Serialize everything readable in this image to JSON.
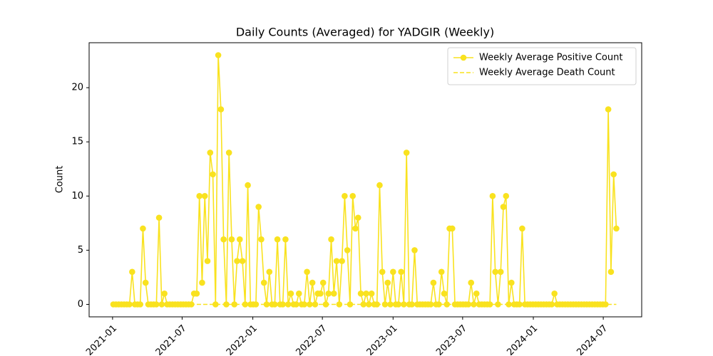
{
  "chart_data": {
    "type": "line",
    "title": "Daily Counts (Averaged) for YADGIR (Weekly)",
    "ylabel": "Count",
    "x": [
      "2021-01-03",
      "2021-01-10",
      "2021-01-17",
      "2021-01-24",
      "2021-01-31",
      "2021-02-07",
      "2021-02-14",
      "2021-02-21",
      "2021-02-28",
      "2021-03-07",
      "2021-03-14",
      "2021-03-21",
      "2021-03-28",
      "2021-04-04",
      "2021-04-11",
      "2021-04-18",
      "2021-04-25",
      "2021-05-02",
      "2021-05-09",
      "2021-05-16",
      "2021-05-23",
      "2021-05-30",
      "2021-06-06",
      "2021-06-13",
      "2021-06-20",
      "2021-06-27",
      "2021-07-04",
      "2021-07-11",
      "2021-07-18",
      "2021-07-25",
      "2021-08-01",
      "2021-08-08",
      "2021-08-15",
      "2021-08-22",
      "2021-08-29",
      "2021-09-05",
      "2021-09-12",
      "2021-09-19",
      "2021-09-26",
      "2021-10-03",
      "2021-10-10",
      "2021-10-17",
      "2021-10-24",
      "2021-10-31",
      "2021-11-07",
      "2021-11-14",
      "2021-11-21",
      "2021-11-28",
      "2021-12-05",
      "2021-12-12",
      "2021-12-19",
      "2021-12-26",
      "2022-01-02",
      "2022-01-09",
      "2022-01-16",
      "2022-01-23",
      "2022-01-30",
      "2022-02-06",
      "2022-02-13",
      "2022-02-20",
      "2022-02-27",
      "2022-03-06",
      "2022-03-13",
      "2022-03-20",
      "2022-03-27",
      "2022-04-03",
      "2022-04-10",
      "2022-04-17",
      "2022-04-24",
      "2022-05-01",
      "2022-05-08",
      "2022-05-15",
      "2022-05-22",
      "2022-05-29",
      "2022-06-05",
      "2022-06-12",
      "2022-06-19",
      "2022-06-26",
      "2022-07-03",
      "2022-07-10",
      "2022-07-17",
      "2022-07-24",
      "2022-07-31",
      "2022-08-07",
      "2022-08-14",
      "2022-08-21",
      "2022-08-28",
      "2022-09-04",
      "2022-09-11",
      "2022-09-18",
      "2022-09-25",
      "2022-10-02",
      "2022-10-09",
      "2022-10-16",
      "2022-10-23",
      "2022-10-30",
      "2022-11-06",
      "2022-11-13",
      "2022-11-20",
      "2022-11-27",
      "2022-12-04",
      "2022-12-11",
      "2022-12-18",
      "2022-12-25",
      "2023-01-01",
      "2023-01-08",
      "2023-01-15",
      "2023-01-22",
      "2023-01-29",
      "2023-02-05",
      "2023-02-12",
      "2023-02-19",
      "2023-02-26",
      "2023-03-05",
      "2023-03-12",
      "2023-03-19",
      "2023-03-26",
      "2023-04-02",
      "2023-04-09",
      "2023-04-16",
      "2023-04-23",
      "2023-04-30",
      "2023-05-07",
      "2023-05-14",
      "2023-05-21",
      "2023-05-28",
      "2023-06-04",
      "2023-06-11",
      "2023-06-18",
      "2023-06-25",
      "2023-07-02",
      "2023-07-09",
      "2023-07-16",
      "2023-07-23",
      "2023-07-30",
      "2023-08-06",
      "2023-08-13",
      "2023-08-20",
      "2023-08-27",
      "2023-09-03",
      "2023-09-10",
      "2023-09-17",
      "2023-09-24",
      "2023-10-01",
      "2023-10-08",
      "2023-10-15",
      "2023-10-22",
      "2023-10-29",
      "2023-11-05",
      "2023-11-12",
      "2023-11-19",
      "2023-11-26",
      "2023-12-03",
      "2023-12-10",
      "2023-12-17",
      "2023-12-24",
      "2023-12-31",
      "2024-01-07",
      "2024-01-14",
      "2024-01-21",
      "2024-01-28",
      "2024-02-04",
      "2024-02-11",
      "2024-02-18",
      "2024-02-25",
      "2024-03-03",
      "2024-03-10",
      "2024-03-17",
      "2024-03-24",
      "2024-03-31",
      "2024-04-07",
      "2024-04-14",
      "2024-04-21",
      "2024-04-28",
      "2024-05-05",
      "2024-05-12",
      "2024-05-19",
      "2024-05-26",
      "2024-06-02",
      "2024-06-09",
      "2024-06-16",
      "2024-06-23",
      "2024-06-30",
      "2024-07-07",
      "2024-07-14",
      "2024-07-21",
      "2024-07-28",
      "2024-08-04"
    ],
    "series": [
      {
        "name": "Weekly Average Positive Count",
        "color": "#f9e21f",
        "linestyle": "solid",
        "marker": true,
        "values": [
          0,
          0,
          0,
          0,
          0,
          0,
          0,
          3,
          0,
          0,
          0,
          7,
          2,
          0,
          0,
          0,
          0,
          8,
          0,
          1,
          0,
          0,
          0,
          0,
          0,
          0,
          0,
          0,
          0,
          0,
          1,
          1,
          10,
          2,
          10,
          4,
          14,
          12,
          0,
          23,
          18,
          6,
          0,
          14,
          6,
          0,
          4,
          6,
          4,
          0,
          11,
          0,
          0,
          0,
          9,
          6,
          2,
          0,
          3,
          0,
          0,
          6,
          0,
          0,
          6,
          0,
          1,
          0,
          0,
          1,
          0,
          0,
          3,
          0,
          2,
          0,
          1,
          1,
          2,
          0,
          1,
          6,
          1,
          4,
          0,
          4,
          10,
          5,
          0,
          10,
          7,
          8,
          1,
          0,
          1,
          0,
          1,
          0,
          0,
          11,
          3,
          0,
          2,
          0,
          3,
          0,
          0,
          3,
          0,
          14,
          0,
          0,
          5,
          0,
          0,
          0,
          0,
          0,
          0,
          2,
          0,
          0,
          3,
          1,
          0,
          7,
          7,
          0,
          0,
          0,
          0,
          0,
          0,
          2,
          0,
          1,
          0,
          0,
          0,
          0,
          0,
          10,
          3,
          0,
          3,
          9,
          10,
          0,
          2,
          0,
          0,
          0,
          7,
          0,
          0,
          0,
          0,
          0,
          0,
          0,
          0,
          0,
          0,
          0,
          1,
          0,
          0,
          0,
          0,
          0,
          0,
          0,
          0,
          0,
          0,
          0,
          0,
          0,
          0,
          0,
          0,
          0,
          0,
          0,
          18,
          3,
          12,
          7
        ]
      },
      {
        "name": "Weekly Average Death Count",
        "color": "#f9e21f",
        "linestyle": "dashed",
        "marker": false,
        "values": [
          0,
          0,
          0,
          0,
          0,
          0,
          0,
          0,
          0,
          0,
          0,
          0,
          0,
          0,
          0,
          0,
          0,
          0,
          0,
          0,
          0,
          0,
          0,
          0,
          0,
          0,
          0,
          0,
          0,
          0,
          0,
          0,
          0,
          0,
          0,
          0,
          0,
          0,
          0,
          0,
          0,
          0,
          0,
          0,
          0,
          0,
          0,
          0,
          0,
          0,
          0,
          0,
          0,
          0,
          0,
          0,
          0,
          0,
          0,
          0,
          0,
          0,
          0,
          0,
          0,
          0,
          0,
          0,
          0,
          0,
          0,
          0,
          0,
          0,
          0,
          0,
          0,
          0,
          0,
          0,
          0,
          0,
          0,
          0,
          0,
          0,
          0,
          0,
          0,
          0,
          0,
          0,
          0,
          0,
          0,
          0,
          0,
          0,
          0,
          0,
          0,
          0,
          0,
          0,
          0,
          0,
          0,
          0,
          0,
          0,
          0,
          0,
          0,
          0,
          0,
          0,
          0,
          0,
          0,
          0,
          0,
          0,
          0,
          0,
          0,
          0,
          0,
          0,
          0,
          0,
          0,
          0,
          0,
          0,
          0,
          0,
          0,
          0,
          0,
          0,
          0,
          0,
          0,
          0,
          0,
          0,
          0,
          0,
          0,
          0,
          0,
          0,
          0,
          0,
          0,
          0,
          0,
          0,
          0,
          0,
          0,
          0,
          0,
          0,
          0,
          0,
          0,
          0,
          0,
          0,
          0,
          0,
          0,
          0,
          0,
          0,
          0,
          0,
          0,
          0,
          0,
          0,
          0,
          0,
          0,
          0,
          0,
          0
        ]
      }
    ],
    "xlim": [
      "2020-11-01",
      "2024-10-09"
    ],
    "xticks": [
      {
        "value": "2021-01-01",
        "label": "2021-01"
      },
      {
        "value": "2021-07-01",
        "label": "2021-07"
      },
      {
        "value": "2022-01-01",
        "label": "2022-01"
      },
      {
        "value": "2022-07-01",
        "label": "2022-07"
      },
      {
        "value": "2023-01-01",
        "label": "2023-01"
      },
      {
        "value": "2023-07-01",
        "label": "2023-07"
      },
      {
        "value": "2024-01-01",
        "label": "2024-01"
      },
      {
        "value": "2024-07-01",
        "label": "2024-07"
      }
    ],
    "ylim": [
      -1.15,
      24.15
    ],
    "yticks": [
      0,
      5,
      10,
      15,
      20
    ],
    "grid": false,
    "legend": "upper right"
  }
}
